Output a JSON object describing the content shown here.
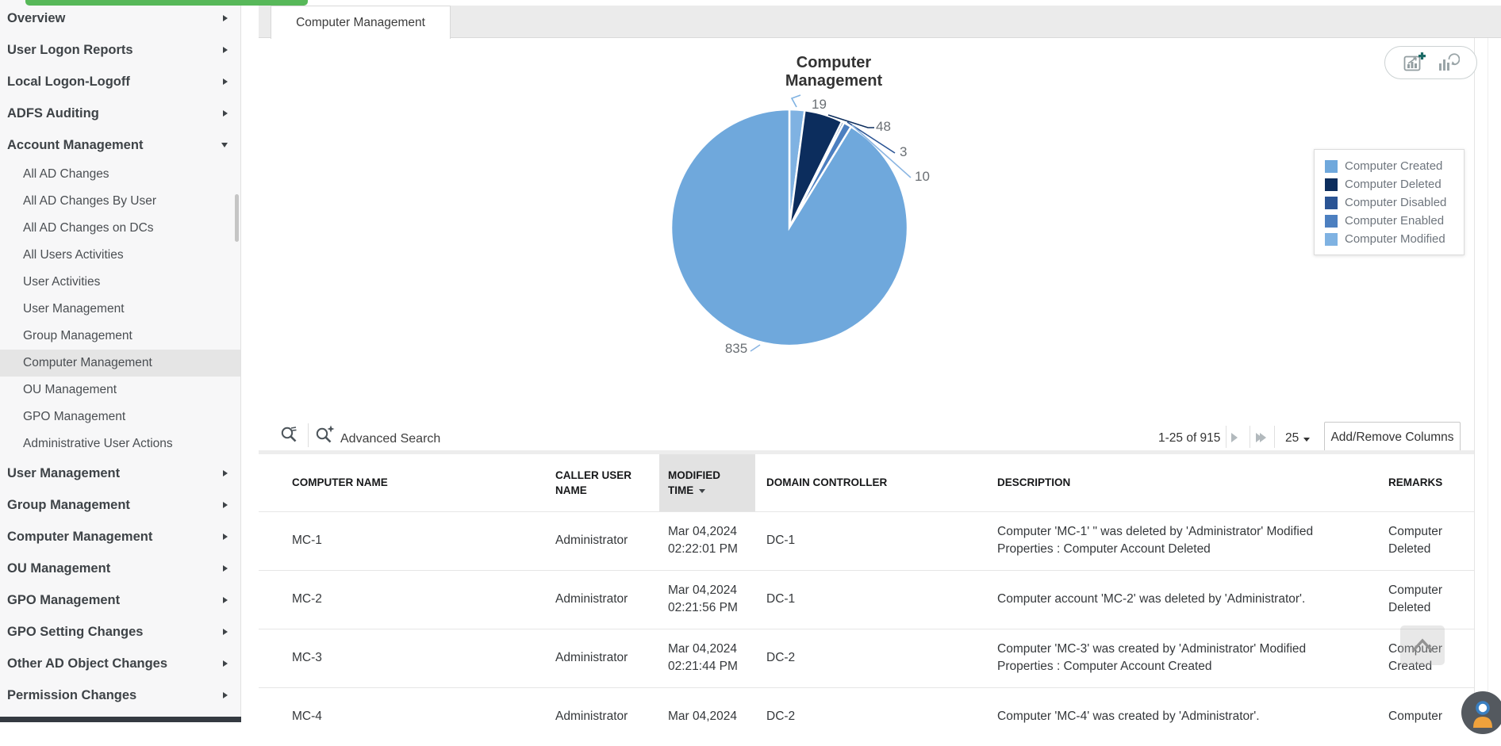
{
  "tab": {
    "label": "Computer Management"
  },
  "sidebar": {
    "accent_bar_color": "#57b859",
    "items": [
      {
        "label": "Overview",
        "level": "top"
      },
      {
        "label": "User Logon Reports",
        "level": "top"
      },
      {
        "label": "Local Logon-Logoff",
        "level": "top"
      },
      {
        "label": "ADFS Auditing",
        "level": "top"
      },
      {
        "label": "Account Management",
        "level": "top",
        "expanded": true
      },
      {
        "label": "All AD Changes",
        "level": "sub"
      },
      {
        "label": "All AD Changes By User",
        "level": "sub"
      },
      {
        "label": "All AD Changes on DCs",
        "level": "sub"
      },
      {
        "label": "All Users Activities",
        "level": "sub"
      },
      {
        "label": "User Activities",
        "level": "sub"
      },
      {
        "label": "User Management",
        "level": "sub"
      },
      {
        "label": "Group Management",
        "level": "sub"
      },
      {
        "label": "Computer Management",
        "level": "sub",
        "selected": true
      },
      {
        "label": "OU Management",
        "level": "sub"
      },
      {
        "label": "GPO Management",
        "level": "sub"
      },
      {
        "label": "Administrative User Actions",
        "level": "sub"
      },
      {
        "label": "User Management",
        "level": "top"
      },
      {
        "label": "Group Management",
        "level": "top"
      },
      {
        "label": "Computer Management",
        "level": "top"
      },
      {
        "label": "OU Management",
        "level": "top"
      },
      {
        "label": "GPO Management",
        "level": "top"
      },
      {
        "label": "GPO Setting Changes",
        "level": "top"
      },
      {
        "label": "Other AD Object Changes",
        "level": "top"
      },
      {
        "label": "Permission Changes",
        "level": "top"
      }
    ]
  },
  "chart_data": {
    "type": "pie",
    "title": "Computer Management",
    "total": 915,
    "series": [
      {
        "name": "Computer Created",
        "value": 835,
        "color": "#6fa8dc"
      },
      {
        "name": "Computer Deleted",
        "value": 48,
        "color": "#0c2d5d"
      },
      {
        "name": "Computer Disabled",
        "value": 3,
        "color": "#2a5494"
      },
      {
        "name": "Computer Enabled",
        "value": 10,
        "color": "#4c7fc0"
      },
      {
        "name": "Computer Modified",
        "value": 19,
        "color": "#7fb2e2"
      }
    ],
    "slice_order_clockwise_from_top": [
      "Computer Modified",
      "Computer Deleted",
      "Computer Disabled",
      "Computer Enabled",
      "Computer Created"
    ],
    "legend_position": "right",
    "value_labels_shown": [
      19,
      48,
      3,
      10,
      835
    ]
  },
  "toolbar": {
    "advanced_search": "Advanced Search",
    "range": "1-25 of 915",
    "page_size": "25",
    "add_remove": "Add/Remove Columns"
  },
  "table": {
    "columns": [
      {
        "label": "COMPUTER NAME"
      },
      {
        "label": "CALLER USER NAME"
      },
      {
        "label": "MODIFIED TIME",
        "sorted": "desc"
      },
      {
        "label": "DOMAIN CONTROLLER"
      },
      {
        "label": "DESCRIPTION"
      },
      {
        "label": "REMARKS"
      }
    ],
    "rows": [
      {
        "computer": "MC-1",
        "caller": "Administrator",
        "time": [
          "Mar 04,2024",
          "02:22:01 PM"
        ],
        "dc": "DC-1",
        "desc": "Computer 'MC-1' \" was deleted by 'Administrator' Modified Properties : Computer Account Deleted",
        "remarks": "Computer Deleted"
      },
      {
        "computer": "MC-2",
        "caller": "Administrator",
        "time": [
          "Mar 04,2024",
          "02:21:56 PM"
        ],
        "dc": "DC-1",
        "desc": "Computer account 'MC-2' was deleted by 'Administrator'.",
        "remarks": "Computer Deleted"
      },
      {
        "computer": "MC-3",
        "caller": "Administrator",
        "time": [
          "Mar 04,2024",
          "02:21:44 PM"
        ],
        "dc": "DC-2",
        "desc": "Computer 'MC-3' was created by 'Administrator' Modified Properties : Computer Account Created",
        "remarks": "Computer Created"
      },
      {
        "computer": "MC-4",
        "caller": "Administrator",
        "time": [
          "Mar 04,2024"
        ],
        "dc": "DC-2",
        "desc": "Computer 'MC-4' was created by 'Administrator'.",
        "remarks": "Computer"
      }
    ]
  }
}
